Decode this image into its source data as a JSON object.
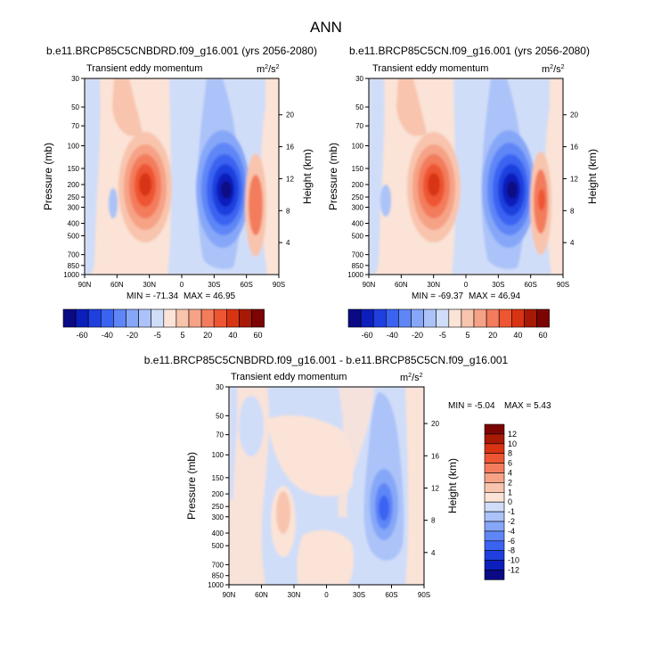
{
  "page": {
    "title": "ANN"
  },
  "chart_data": [
    {
      "type": "heatmap",
      "subtitle": "b.e11.BRCP85C5CNBDRD.f09_g16.001 (yrs 2056-2080)",
      "field_label": "Transient eddy momentum",
      "units_base": "m",
      "units_exp": "2",
      "units_den": "/s",
      "units_den_exp": "2",
      "ylabel": "Pressure (mb)",
      "ylabel_right": "Height (km)",
      "y_ticks": [
        "30",
        "50",
        "70",
        "100",
        "150",
        "200",
        "250",
        "300",
        "400",
        "500",
        "700",
        "850",
        "1000"
      ],
      "height_ticks": [
        "20",
        "16",
        "12",
        "8",
        "4"
      ],
      "x_ticks": [
        "90N",
        "60N",
        "30N",
        "0",
        "30S",
        "60S",
        "90S"
      ],
      "min_label": "MIN = -71.34",
      "max_label": "MAX =  46.95",
      "levels": [
        "-60",
        "-40",
        "-20",
        "-5",
        "5",
        "20",
        "40",
        "60"
      ],
      "features": [
        {
          "lat": 31,
          "p": 210,
          "value": 46.95
        },
        {
          "lat": -36,
          "p": 220,
          "value": -71.34
        },
        {
          "lat": -65,
          "p": 250,
          "value": 20
        }
      ]
    },
    {
      "type": "heatmap",
      "subtitle": "b.e11.BRCP85C5CN.f09_g16.001 (yrs 2056-2080)",
      "field_label": "Transient eddy momentum",
      "units_base": "m",
      "units_exp": "2",
      "units_den": "/s",
      "units_den_exp": "2",
      "ylabel": "Pressure (mb)",
      "ylabel_right": "Height (km)",
      "y_ticks": [
        "30",
        "50",
        "70",
        "100",
        "150",
        "200",
        "250",
        "300",
        "400",
        "500",
        "700",
        "850",
        "1000"
      ],
      "height_ticks": [
        "20",
        "16",
        "12",
        "8",
        "4"
      ],
      "x_ticks": [
        "90N",
        "60N",
        "30N",
        "0",
        "30S",
        "60S",
        "90S"
      ],
      "min_label": "MIN = -69.37",
      "max_label": "MAX =  46.94",
      "levels": [
        "-60",
        "-40",
        "-20",
        "-5",
        "5",
        "20",
        "40",
        "60"
      ],
      "features": [
        {
          "lat": 31,
          "p": 210,
          "value": 46.94
        },
        {
          "lat": -36,
          "p": 220,
          "value": -69.37
        },
        {
          "lat": -66,
          "p": 240,
          "value": 25
        }
      ]
    },
    {
      "type": "heatmap",
      "subtitle": "b.e11.BRCP85C5CNBDRD.f09_g16.001 - b.e11.BRCP85C5CN.f09_g16.001",
      "field_label": "Transient eddy momentum",
      "units_base": "m",
      "units_exp": "2",
      "units_den": "/s",
      "units_den_exp": "2",
      "ylabel": "Pressure (mb)",
      "ylabel_right": "Height (km)",
      "y_ticks": [
        "30",
        "50",
        "70",
        "100",
        "150",
        "200",
        "250",
        "300",
        "400",
        "500",
        "700",
        "850",
        "1000"
      ],
      "height_ticks": [
        "20",
        "16",
        "12",
        "8",
        "4"
      ],
      "x_ticks": [
        "90N",
        "60N",
        "30N",
        "0",
        "30S",
        "60S",
        "90S"
      ],
      "min_label": "MIN = -5.04",
      "max_label": "MAX =  5.43",
      "levels": [
        "12",
        "10",
        "8",
        "6",
        "4",
        "2",
        "1",
        "0",
        "-1",
        "-2",
        "-4",
        "-6",
        "-8",
        "-10",
        "-12"
      ],
      "features": [
        {
          "lat": -57,
          "p": 270,
          "value": -5.04
        },
        {
          "lat": 38,
          "p": 280,
          "value": 2
        }
      ]
    }
  ],
  "colorbar_main": {
    "colors": [
      "#0a0a84",
      "#0c1ebc",
      "#1f3fde",
      "#3a63f2",
      "#5f86f7",
      "#86a7f8",
      "#abc3f8",
      "#d0ddf9",
      "#fbe3d7",
      "#f8c4ad",
      "#f6a286",
      "#f37c5c",
      "#ee5532",
      "#d83414",
      "#a81a06",
      "#7c0503"
    ]
  },
  "colorbar_diff": {
    "colors": [
      "#7c0503",
      "#a81a06",
      "#d83414",
      "#ee5532",
      "#f37c5c",
      "#f6a286",
      "#f8c4ad",
      "#fbe3d7",
      "#d0ddf9",
      "#abc3f8",
      "#86a7f8",
      "#5f86f7",
      "#3a63f2",
      "#1f3fde",
      "#0c1ebc",
      "#0a0a84"
    ]
  }
}
